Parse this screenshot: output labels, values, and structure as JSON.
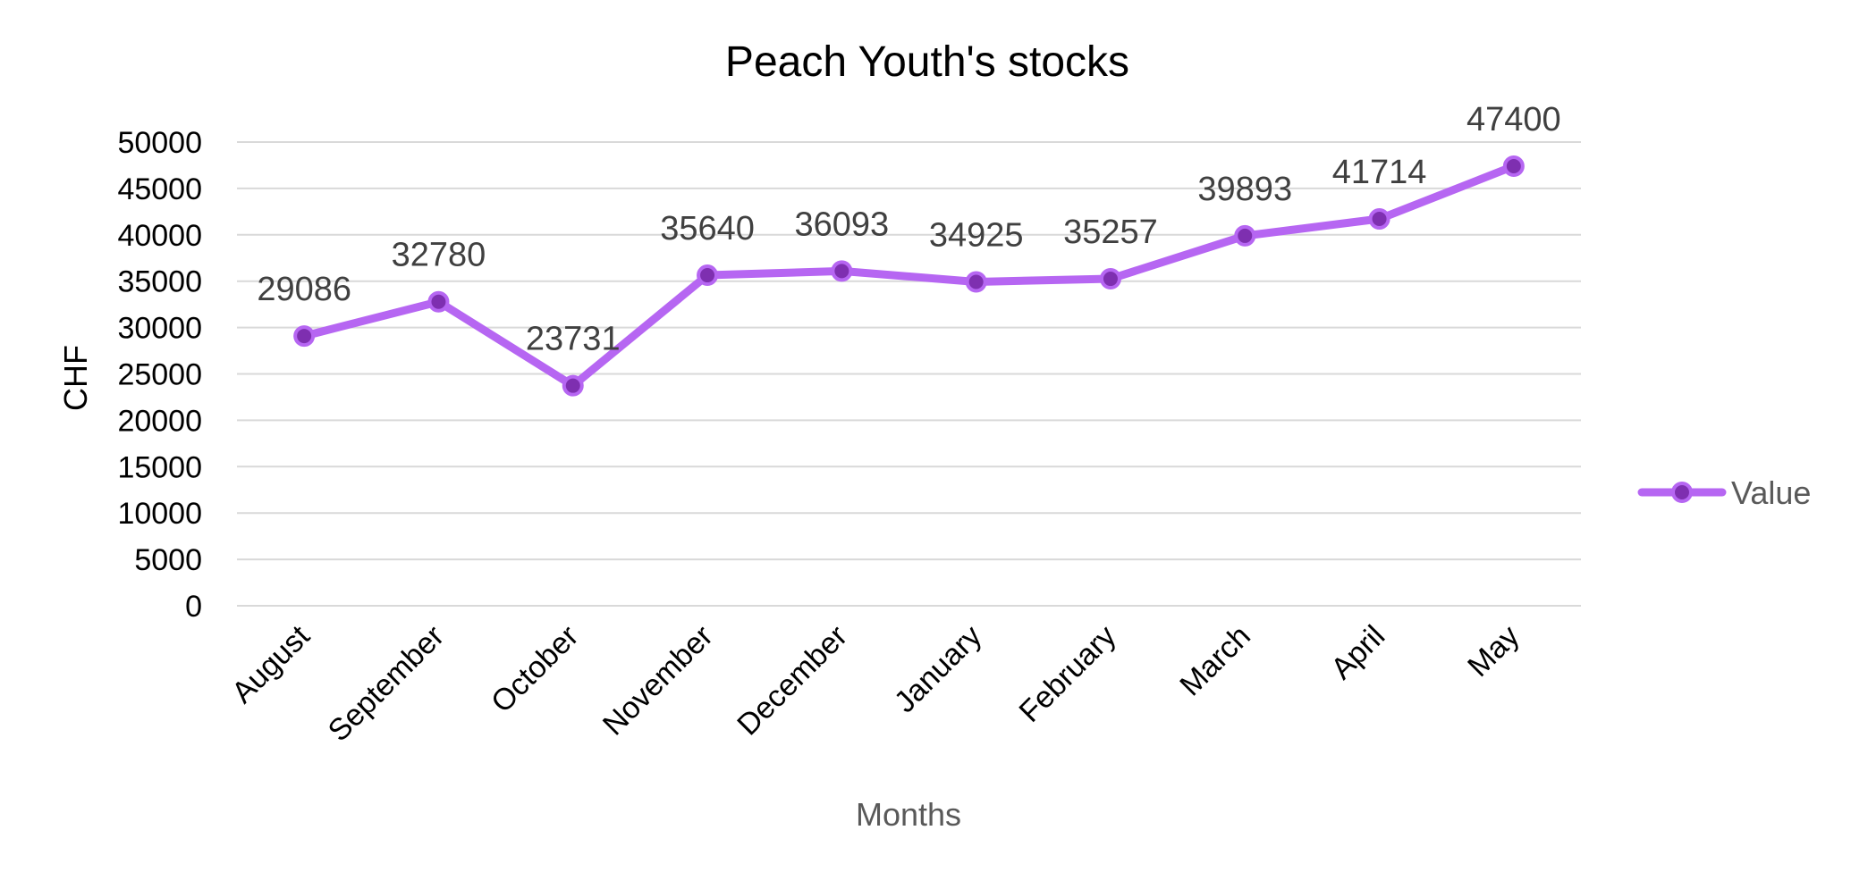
{
  "chart_data": {
    "type": "line",
    "title": "Peach Youth's stocks",
    "xlabel": "Months",
    "ylabel": "CHF",
    "categories": [
      "August",
      "September",
      "October",
      "November",
      "December",
      "January",
      "February",
      "March",
      "April",
      "May"
    ],
    "series": [
      {
        "name": "Value",
        "values": [
          29086,
          32780,
          23731,
          35640,
          36093,
          34925,
          35257,
          39893,
          41714,
          47400
        ],
        "color": "#b666f2",
        "marker_fill": "#7e2fb0"
      }
    ],
    "ylim": [
      0,
      50000
    ],
    "ytick_step": 5000,
    "grid": true,
    "legend": "right",
    "data_labels": true
  }
}
